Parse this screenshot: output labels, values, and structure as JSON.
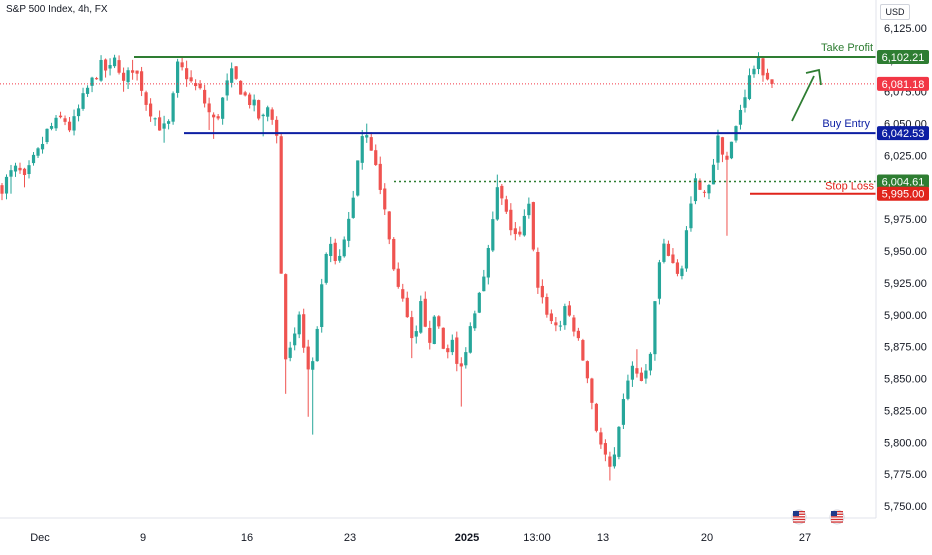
{
  "header": {
    "title": "S&P 500 Index, 4h, FX",
    "currency": "USD"
  },
  "colors": {
    "up": "#26a69a",
    "down": "#ef5350",
    "take_profit": "#2e7d32",
    "buy_entry": "#0d1fa3",
    "stop_loss": "#e0241b",
    "current_price": "#f23645",
    "axis_text": "#131722"
  },
  "annotations": {
    "take_profit": "Take Profit",
    "buy_entry": "Buy Entry",
    "stop_loss": "Stop Loss"
  },
  "price_tags": {
    "take_profit": "6,102.21",
    "current": "6,081.18",
    "buy_entry": "6,042.53",
    "support": "6,004.61",
    "stop_loss": "5,995.00"
  },
  "icons": [
    "us-flag-icon",
    "us-flag-icon"
  ],
  "chart_data": {
    "type": "candlestick",
    "title": "S&P 500 Index, 4h, FX",
    "yaxis_ticks": [
      "6,125.00",
      "6,100.00",
      "6,075.00",
      "6,050.00",
      "6,025.00",
      "6,000.00",
      "5,975.00",
      "5,950.00",
      "5,925.00",
      "5,900.00",
      "5,875.00",
      "5,850.00",
      "5,825.00",
      "5,800.00",
      "5,775.00",
      "5,750.00"
    ],
    "ylim": [
      5745,
      6135
    ],
    "x_ticks": [
      {
        "label": "Dec",
        "bold": false
      },
      {
        "label": "9",
        "bold": false
      },
      {
        "label": "16",
        "bold": false
      },
      {
        "label": "23",
        "bold": false
      },
      {
        "label": "2025",
        "bold": true
      },
      {
        "label": "13:00",
        "bold": false
      },
      {
        "label": "13",
        "bold": false
      },
      {
        "label": "20",
        "bold": false
      },
      {
        "label": "27",
        "bold": false
      }
    ],
    "levels": {
      "take_profit": 6102.21,
      "buy_entry": 6042.53,
      "support": 6004.61,
      "stop_loss": 5995.0,
      "current": 6081.18
    },
    "path": [
      {
        "p": 6000,
        "l": 5990
      },
      {
        "p": 6010,
        "l": 5995
      },
      {
        "p": 6015
      },
      {
        "p": 6005,
        "l": 6000
      },
      {
        "p": 6020
      },
      {
        "p": 6030
      },
      {
        "p": 6045
      },
      {
        "p": 6050
      },
      {
        "p": 6055
      },
      {
        "p": 6045
      },
      {
        "p": 6060
      },
      {
        "p": 6075
      },
      {
        "p": 6085
      },
      {
        "p": 6095
      },
      {
        "p": 6090
      },
      {
        "p": 6102,
        "h": 6104
      },
      {
        "p": 6080,
        "l": 6075
      },
      {
        "p": 6095,
        "h": 6100
      },
      {
        "p": 6085
      },
      {
        "p": 6065,
        "l": 6060
      },
      {
        "p": 6055
      },
      {
        "p": 6045,
        "l": 6035
      },
      {
        "p": 6050
      },
      {
        "p": 6095,
        "h": 6100
      },
      {
        "p": 6090
      },
      {
        "p": 6080
      },
      {
        "p": 6075
      },
      {
        "p": 6060,
        "l": 6045
      },
      {
        "p": 6050,
        "l": 6038
      },
      {
        "p": 6070
      },
      {
        "p": 6090,
        "h": 6095
      },
      {
        "p": 6080
      },
      {
        "p": 6070
      },
      {
        "p": 6065
      },
      {
        "p": 6050,
        "l": 6040
      },
      {
        "p": 6065
      },
      {
        "p": 6045,
        "l": 6040
      },
      {
        "p": 5870,
        "l": 5838
      },
      {
        "p": 5870
      },
      {
        "p": 5900
      },
      {
        "p": 5855,
        "l": 5820
      },
      {
        "p": 5860,
        "l": 5806
      },
      {
        "p": 5930
      },
      {
        "p": 5955
      },
      {
        "p": 5935
      },
      {
        "p": 5960
      },
      {
        "p": 5990
      },
      {
        "p": 6040,
        "h": 6045
      },
      {
        "p": 6045,
        "h": 6050
      },
      {
        "p": 6015
      },
      {
        "p": 5990
      },
      {
        "p": 5950
      },
      {
        "p": 5920
      },
      {
        "p": 5900
      },
      {
        "p": 5870,
        "l": 5866
      },
      {
        "p": 5910
      },
      {
        "p": 5880
      },
      {
        "p": 5900
      },
      {
        "p": 5870
      },
      {
        "p": 5880
      },
      {
        "p": 5850,
        "l": 5828
      },
      {
        "p": 5880
      },
      {
        "p": 5905
      },
      {
        "p": 5930
      },
      {
        "p": 5955
      },
      {
        "p": 6000,
        "h": 6010
      },
      {
        "p": 5980
      },
      {
        "p": 5965
      },
      {
        "p": 5960
      },
      {
        "p": 5990
      },
      {
        "p": 5930
      },
      {
        "p": 5910
      },
      {
        "p": 5895
      },
      {
        "p": 5890
      },
      {
        "p": 5905
      },
      {
        "p": 5890
      },
      {
        "p": 5870
      },
      {
        "p": 5845
      },
      {
        "p": 5810
      },
      {
        "p": 5790
      },
      {
        "p": 5775,
        "l": 5770
      },
      {
        "p": 5810
      },
      {
        "p": 5850
      },
      {
        "p": 5860,
        "h": 5873
      },
      {
        "p": 5845
      },
      {
        "p": 5865
      },
      {
        "p": 5935
      },
      {
        "p": 5955
      },
      {
        "p": 5940
      },
      {
        "p": 5930
      },
      {
        "p": 5975
      },
      {
        "p": 6005,
        "h": 6010
      },
      {
        "p": 5990
      },
      {
        "p": 6010
      },
      {
        "p": 6040,
        "h": 6045
      },
      {
        "p": 6020,
        "l": 5962
      },
      {
        "p": 6040
      },
      {
        "p": 6065
      },
      {
        "p": 6085
      },
      {
        "p": 6100,
        "h": 6106
      },
      {
        "p": 6090
      },
      {
        "p": 6081
      }
    ]
  }
}
